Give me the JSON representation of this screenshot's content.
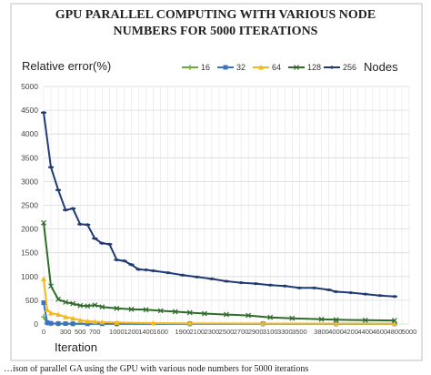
{
  "chart_data": {
    "type": "line",
    "title_lines": [
      "GPU PARALLEL COMPUTING WITH VARIOUS NODE",
      "NUMBERS FOR 5000 ITERATIONS"
    ],
    "ylabel": "Relative error(%)",
    "xlabel": "Iteration",
    "legend_title": "Nodes",
    "legend_position": "top-right",
    "ylim": [
      0,
      5000
    ],
    "xlim": [
      0,
      5000
    ],
    "y_ticks": [
      0,
      500,
      1000,
      1500,
      2000,
      2500,
      3000,
      3500,
      4000,
      4500,
      5000
    ],
    "x_ticks": [
      0,
      300,
      500,
      700,
      1000,
      1200,
      1400,
      1600,
      1900,
      2100,
      2300,
      2500,
      2700,
      2900,
      3100,
      3300,
      3500,
      3800,
      4000,
      4200,
      4400,
      4600,
      4800,
      5000
    ],
    "x_tick_labels": [
      "0",
      "300",
      "500",
      "700",
      "1000",
      "1200",
      "1400",
      "1600",
      "1900",
      "2100",
      "2300",
      "2500",
      "2700",
      "2900",
      "3100",
      "3300",
      "3500",
      "3800",
      "4000",
      "4200",
      "4400",
      "4600",
      "4800",
      "5000"
    ],
    "grid": true,
    "series": [
      {
        "name": "16",
        "color": "#6aaa3a",
        "marker": "plus",
        "points": [
          [
            0,
            150
          ],
          [
            50,
            20
          ],
          [
            100,
            10
          ],
          [
            200,
            5
          ],
          [
            400,
            5
          ],
          [
            1000,
            5
          ],
          [
            2000,
            5
          ],
          [
            3000,
            5
          ],
          [
            4000,
            5
          ],
          [
            4800,
            5
          ]
        ]
      },
      {
        "name": "32",
        "color": "#3a72c4",
        "marker": "square",
        "points": [
          [
            0,
            450
          ],
          [
            50,
            30
          ],
          [
            100,
            15
          ],
          [
            200,
            10
          ],
          [
            300,
            8
          ],
          [
            400,
            6
          ],
          [
            600,
            5
          ],
          [
            800,
            5
          ],
          [
            1000,
            5
          ],
          [
            2000,
            5
          ],
          [
            3000,
            5
          ],
          [
            4000,
            5
          ],
          [
            4800,
            5
          ]
        ]
      },
      {
        "name": "64",
        "color": "#f2b820",
        "marker": "triangle",
        "points": [
          [
            0,
            950
          ],
          [
            50,
            300
          ],
          [
            100,
            230
          ],
          [
            200,
            200
          ],
          [
            300,
            150
          ],
          [
            400,
            120
          ],
          [
            500,
            80
          ],
          [
            600,
            60
          ],
          [
            700,
            50
          ],
          [
            800,
            40
          ],
          [
            1000,
            30
          ],
          [
            1500,
            20
          ],
          [
            2000,
            15
          ],
          [
            3000,
            10
          ],
          [
            4000,
            8
          ],
          [
            4800,
            6
          ]
        ]
      },
      {
        "name": "128",
        "color": "#2e6b2a",
        "marker": "x",
        "points": [
          [
            0,
            2130
          ],
          [
            100,
            800
          ],
          [
            200,
            520
          ],
          [
            300,
            460
          ],
          [
            400,
            430
          ],
          [
            500,
            390
          ],
          [
            600,
            380
          ],
          [
            700,
            400
          ],
          [
            800,
            360
          ],
          [
            1000,
            330
          ],
          [
            1200,
            310
          ],
          [
            1400,
            300
          ],
          [
            1600,
            280
          ],
          [
            1800,
            260
          ],
          [
            2000,
            240
          ],
          [
            2200,
            220
          ],
          [
            2500,
            200
          ],
          [
            2800,
            180
          ],
          [
            3100,
            140
          ],
          [
            3400,
            120
          ],
          [
            3800,
            100
          ],
          [
            4000,
            90
          ],
          [
            4400,
            80
          ],
          [
            4800,
            75
          ]
        ]
      },
      {
        "name": "256",
        "color": "#1f3b73",
        "marker": "dash",
        "points": [
          [
            0,
            4450
          ],
          [
            100,
            3300
          ],
          [
            200,
            2820
          ],
          [
            300,
            2400
          ],
          [
            400,
            2430
          ],
          [
            500,
            2100
          ],
          [
            600,
            2090
          ],
          [
            700,
            1800
          ],
          [
            800,
            1700
          ],
          [
            900,
            1680
          ],
          [
            1000,
            1350
          ],
          [
            1100,
            1330
          ],
          [
            1200,
            1250
          ],
          [
            1300,
            1150
          ],
          [
            1400,
            1140
          ],
          [
            1500,
            1120
          ],
          [
            1700,
            1080
          ],
          [
            1900,
            1030
          ],
          [
            2100,
            990
          ],
          [
            2300,
            950
          ],
          [
            2500,
            900
          ],
          [
            2700,
            870
          ],
          [
            2900,
            850
          ],
          [
            3100,
            820
          ],
          [
            3300,
            800
          ],
          [
            3500,
            760
          ],
          [
            3700,
            760
          ],
          [
            3900,
            720
          ],
          [
            4000,
            680
          ],
          [
            4200,
            660
          ],
          [
            4400,
            630
          ],
          [
            4600,
            600
          ],
          [
            4800,
            580
          ]
        ]
      }
    ]
  },
  "caption": "…ison of parallel GA using the GPU with various node numbers for 5000 iterations"
}
